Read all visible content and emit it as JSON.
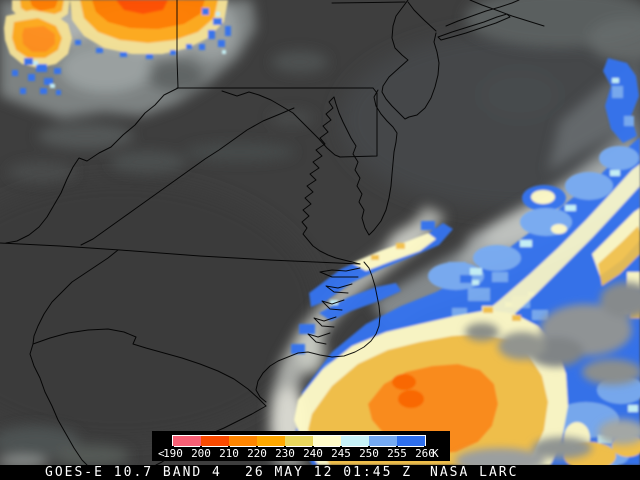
{
  "image": {
    "satellite": "GOES-E",
    "channel_um": "10.7",
    "band": "BAND 4",
    "timestamp": "26 MAY 12 01:45 Z",
    "credit": "NASA LARC",
    "unit": "K"
  },
  "status_bar": {
    "left": "GOES-E 10.7 BAND 4",
    "center": "26 MAY 12 01:45 Z",
    "right": "NASA LARC"
  },
  "legend": {
    "prefix": "<",
    "unit": "K",
    "tick_labels": [
      "190",
      "200",
      "210",
      "220",
      "230",
      "240",
      "245",
      "250",
      "255",
      "260"
    ],
    "segment_colors": [
      "#f85f75",
      "#fa4a00",
      "#ff8500",
      "#ffa800",
      "#e9d65c",
      "#fffbc8",
      "#c6f1f7",
      "#74a9f2",
      "#2e6fee"
    ]
  },
  "colors": {
    "background_gray": "#3e3e3e",
    "boundary_line": "#000000",
    "legend_background": "#000000",
    "statusbar_background": "#000000",
    "text": "#ffffff"
  }
}
